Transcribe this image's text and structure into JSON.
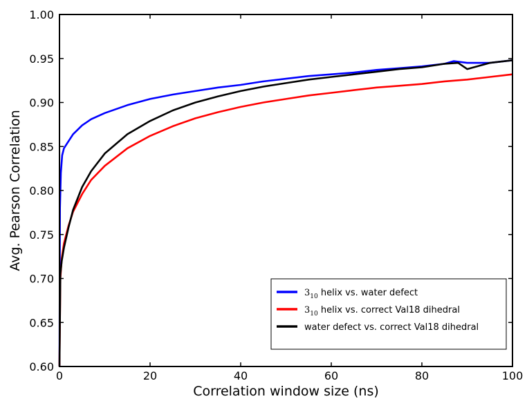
{
  "chart_data": {
    "type": "line",
    "title": "",
    "xlabel": "Correlation window size (ns)",
    "ylabel": "Avg. Pearson Correlation",
    "xlim": [
      0,
      100
    ],
    "ylim": [
      0.6,
      1.0
    ],
    "x_ticks": [
      0,
      20,
      40,
      60,
      80,
      100
    ],
    "y_ticks": [
      0.6,
      0.65,
      0.7,
      0.75,
      0.8,
      0.85,
      0.9,
      0.95,
      1.0
    ],
    "x_tick_labels": [
      "0",
      "20",
      "40",
      "60",
      "80",
      "100"
    ],
    "y_tick_labels": [
      "0.60",
      "0.65",
      "0.70",
      "0.75",
      "0.80",
      "0.85",
      "0.90",
      "0.95",
      "1.00"
    ],
    "grid": false,
    "legend_position": "lower-right",
    "series": [
      {
        "name": "3₁₀ helix vs. water defect",
        "legend_main": "3",
        "legend_sub": "10",
        "legend_rest": " helix vs. water defect",
        "color": "#0000ff",
        "x": [
          0,
          0.1,
          0.3,
          0.6,
          1,
          2,
          3,
          5,
          7,
          10,
          15,
          20,
          25,
          30,
          35,
          40,
          45,
          50,
          55,
          60,
          65,
          70,
          75,
          80,
          85,
          87,
          90,
          95,
          100
        ],
        "y": [
          0.6,
          0.78,
          0.82,
          0.84,
          0.848,
          0.856,
          0.864,
          0.874,
          0.881,
          0.888,
          0.897,
          0.904,
          0.909,
          0.913,
          0.917,
          0.92,
          0.924,
          0.927,
          0.93,
          0.932,
          0.934,
          0.937,
          0.939,
          0.941,
          0.944,
          0.947,
          0.945,
          0.945,
          0.948
        ]
      },
      {
        "name": "3₁₀ helix vs. correct Val18 dihedral",
        "legend_main": "3",
        "legend_sub": "10",
        "legend_rest": " helix vs. correct Val18 dihedral",
        "color": "#ff0000",
        "x": [
          0,
          0.2,
          0.5,
          1,
          2,
          3,
          5,
          7,
          10,
          15,
          20,
          25,
          30,
          35,
          40,
          45,
          50,
          55,
          60,
          65,
          70,
          75,
          80,
          85,
          90,
          95,
          100
        ],
        "y": [
          0.6,
          0.7,
          0.723,
          0.74,
          0.76,
          0.776,
          0.796,
          0.812,
          0.828,
          0.848,
          0.862,
          0.873,
          0.882,
          0.889,
          0.895,
          0.9,
          0.904,
          0.908,
          0.911,
          0.914,
          0.917,
          0.919,
          0.921,
          0.924,
          0.926,
          0.929,
          0.932
        ]
      },
      {
        "name": "water defect vs. correct Val18 dihedral",
        "legend_main": "water defect vs. correct Val18 dihedral",
        "legend_sub": "",
        "legend_rest": "",
        "color": "#000000",
        "x": [
          0,
          0.2,
          0.5,
          1,
          2,
          3,
          5,
          7,
          10,
          15,
          20,
          25,
          30,
          35,
          40,
          45,
          50,
          55,
          60,
          65,
          70,
          75,
          80,
          85,
          88,
          90,
          95,
          100
        ],
        "y": [
          0.6,
          0.705,
          0.72,
          0.735,
          0.758,
          0.778,
          0.804,
          0.822,
          0.842,
          0.864,
          0.879,
          0.891,
          0.9,
          0.907,
          0.913,
          0.918,
          0.922,
          0.926,
          0.929,
          0.932,
          0.935,
          0.938,
          0.94,
          0.944,
          0.945,
          0.938,
          0.945,
          0.948
        ]
      }
    ]
  }
}
